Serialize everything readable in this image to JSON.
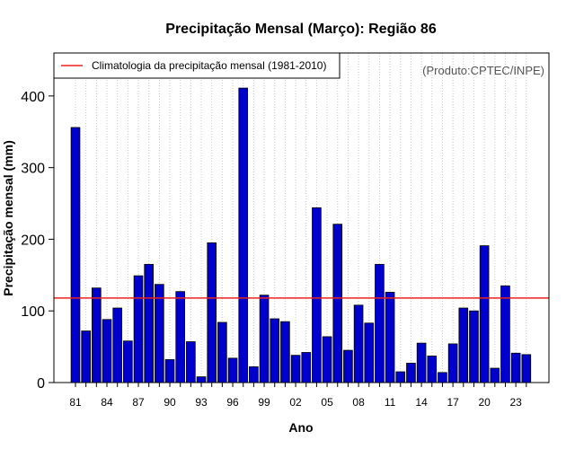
{
  "chart_data": {
    "type": "bar",
    "title": "Precipitação Mensal (Março): Região 86",
    "xlabel": "Ano",
    "ylabel": "Precipitação mensal (mm)",
    "ylim": [
      0,
      460
    ],
    "yticks": [
      0,
      100,
      200,
      300,
      400
    ],
    "categories": [
      "81",
      "82",
      "83",
      "84",
      "85",
      "86",
      "87",
      "88",
      "89",
      "90",
      "91",
      "92",
      "93",
      "94",
      "95",
      "96",
      "97",
      "98",
      "99",
      "00",
      "01",
      "02",
      "03",
      "04",
      "05",
      "06",
      "07",
      "08",
      "09",
      "10",
      "11",
      "12",
      "13",
      "14",
      "15",
      "16",
      "17",
      "18",
      "19",
      "20",
      "21",
      "22",
      "23",
      "24"
    ],
    "xtick_labels": [
      "81",
      "84",
      "87",
      "90",
      "93",
      "96",
      "99",
      "02",
      "05",
      "08",
      "11",
      "14",
      "17",
      "20",
      "23"
    ],
    "values": [
      356,
      72,
      132,
      88,
      104,
      58,
      149,
      165,
      137,
      32,
      127,
      57,
      8,
      195,
      84,
      34,
      411,
      22,
      122,
      89,
      85,
      38,
      42,
      244,
      64,
      221,
      45,
      108,
      83,
      165,
      126,
      15,
      27,
      55,
      37,
      14,
      54,
      104,
      100,
      191,
      20,
      135,
      41,
      39
    ],
    "climatology": 118,
    "grid": "vertical-dotted",
    "legend": {
      "position": "top-left",
      "entries": [
        {
          "label": "Climatologia da precipitação mensal (1981-2010)",
          "color": "#ee2020"
        }
      ]
    },
    "annotation": "(Produto:CPTEC/INPE)",
    "colors": {
      "bar_fill": "#0000cc",
      "bar_stroke": "#000000",
      "climatology_line": "#ee2020",
      "grid": "#c8c8c8"
    }
  }
}
